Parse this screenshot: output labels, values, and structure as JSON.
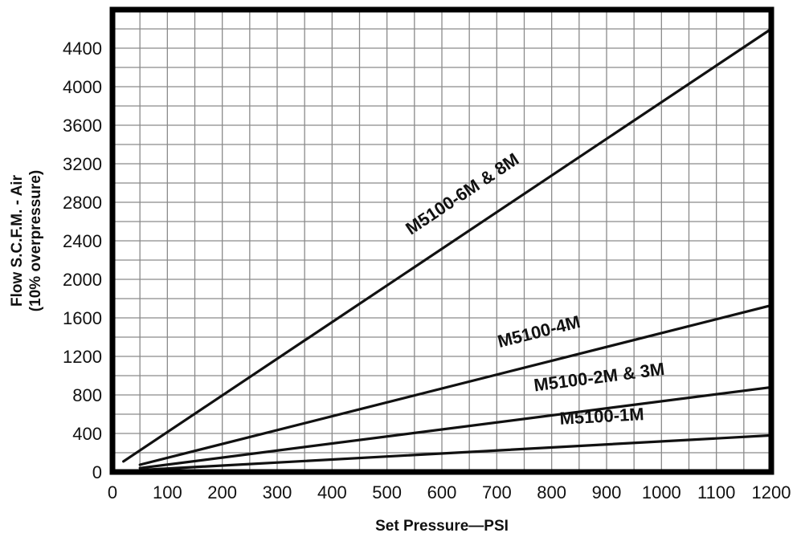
{
  "chart_data": {
    "type": "line",
    "title": "",
    "xlabel": "Set Pressure—PSI",
    "ylabel_line1": "Flow S.C.F.M. - Air",
    "ylabel_line2": "(10% overpressure)",
    "xlim": [
      0,
      1200
    ],
    "ylim": [
      0,
      4800
    ],
    "x_ticks": [
      0,
      100,
      200,
      300,
      400,
      500,
      600,
      700,
      800,
      900,
      1000,
      1100,
      1200
    ],
    "x_tick_labels": [
      "0",
      "100",
      "200",
      "300",
      "400",
      "500",
      "600",
      "700",
      "800",
      "900",
      "1000",
      "1100",
      "1200"
    ],
    "y_ticks": [
      0,
      400,
      800,
      1200,
      1600,
      2000,
      2400,
      2800,
      3200,
      3600,
      4000,
      4400
    ],
    "y_tick_labels": [
      "0",
      "400",
      "800",
      "1200",
      "1600",
      "2000",
      "2400",
      "2800",
      "3200",
      "3600",
      "4000",
      "4400"
    ],
    "x_grid_step": 50,
    "y_grid_step": 200,
    "grid": true,
    "colors": {
      "line": "#111111",
      "grid": "#8a8a8a",
      "frame": "#000000"
    },
    "series": [
      {
        "name": "M5100-6M & 8M",
        "x": [
          20,
          1200
        ],
        "y": [
          110,
          4600
        ]
      },
      {
        "name": "M5100-4M",
        "x": [
          50,
          1200
        ],
        "y": [
          75,
          1730
        ]
      },
      {
        "name": "M5100-2M & 3M",
        "x": [
          50,
          1200
        ],
        "y": [
          40,
          880
        ]
      },
      {
        "name": "M5100-1M",
        "x": [
          50,
          1200
        ],
        "y": [
          20,
          380
        ]
      }
    ]
  }
}
